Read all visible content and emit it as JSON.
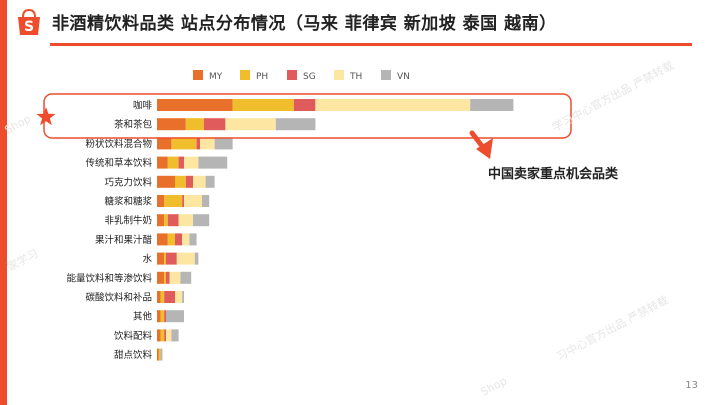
{
  "header": {
    "title": "非酒精饮料品类 站点分布情况（马来 菲律宾 新加坡 泰国 越南）",
    "page_number": "13"
  },
  "callout": {
    "text": "中国卖家重点机会品类"
  },
  "watermarks": [
    "Shop",
    "学习中心官方出品 严禁转载",
    "家学习",
    "习中心官方出品 严禁转载",
    "Shop"
  ],
  "chart_data": {
    "type": "bar",
    "orientation": "horizontal",
    "stacked": true,
    "legend_position": "top",
    "grid": false,
    "categories": [
      "咖啡",
      "茶和茶包",
      "粉状饮料混合物",
      "传统和草本饮料",
      "巧克力饮料",
      "糖浆和糖浆",
      "非乳制牛奶",
      "果汁和果汁醋",
      "水",
      "能量饮料和等渗饮料",
      "碳酸饮料和补品",
      "其他",
      "饮料配料",
      "甜点饮料"
    ],
    "series": [
      {
        "name": "MY",
        "color": "#e8702a",
        "values": [
          21,
          8,
          4,
          3,
          5,
          2,
          2,
          3,
          2,
          2,
          1,
          1,
          1,
          0.5
        ]
      },
      {
        "name": "PH",
        "color": "#f0be2c",
        "values": [
          17,
          5,
          7,
          3,
          3,
          5,
          1,
          2,
          0.5,
          0.5,
          1,
          1,
          1,
          0.5
        ]
      },
      {
        "name": "SG",
        "color": "#e05c5c",
        "values": [
          6,
          6,
          1,
          1.5,
          2,
          0.5,
          3,
          2,
          3,
          1,
          3,
          0.5,
          0.5,
          0
        ]
      },
      {
        "name": "TH",
        "color": "#fde6a2",
        "values": [
          43,
          14,
          4,
          4,
          3.5,
          5,
          4,
          2,
          5,
          3,
          2,
          0,
          1.5,
          0
        ]
      },
      {
        "name": "VN",
        "color": "#b5b5b5",
        "values": [
          12,
          11,
          5,
          8,
          2.5,
          2,
          4.5,
          2,
          1,
          3,
          0.5,
          5,
          2,
          0.5
        ]
      }
    ],
    "highlighted_categories": [
      "咖啡",
      "茶和茶包"
    ],
    "xlim": [
      0,
      100
    ]
  }
}
